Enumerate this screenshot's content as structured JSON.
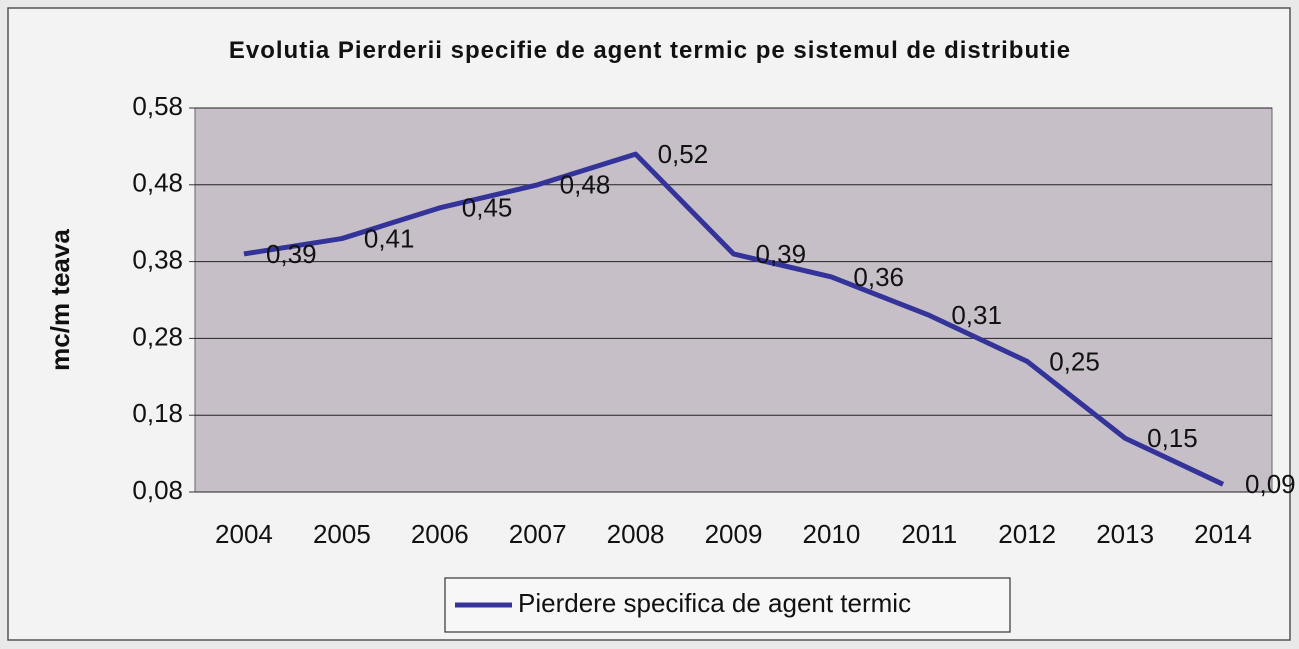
{
  "chart_data": {
    "type": "line",
    "title": "Evolutia Pierderii specifie de agent termic pe sistemul de distributie",
    "y_label": "mc/m teava",
    "categories": [
      "2004",
      "2005",
      "2006",
      "2007",
      "2008",
      "2009",
      "2010",
      "2011",
      "2012",
      "2013",
      "2014"
    ],
    "series": [
      {
        "name": "Pierdere specifica de agent termic",
        "color": "#333399",
        "values": [
          0.39,
          0.41,
          0.45,
          0.48,
          0.52,
          0.39,
          0.36,
          0.31,
          0.25,
          0.15,
          0.09
        ],
        "value_labels": [
          "0,39",
          "0,41",
          "0,45",
          "0,48",
          "0,52",
          "0,39",
          "0,36",
          "0,31",
          "0,25",
          "0,15",
          "0,09"
        ]
      }
    ],
    "ylim": [
      0.08,
      0.58
    ],
    "yticks": [
      {
        "value": 0.08,
        "label": "0,08"
      },
      {
        "value": 0.18,
        "label": "0,18"
      },
      {
        "value": 0.28,
        "label": "0,28"
      },
      {
        "value": 0.38,
        "label": "0,38"
      },
      {
        "value": 0.48,
        "label": "0,48"
      },
      {
        "value": 0.58,
        "label": "0,58"
      }
    ],
    "grid": true,
    "legend": "bottom"
  }
}
